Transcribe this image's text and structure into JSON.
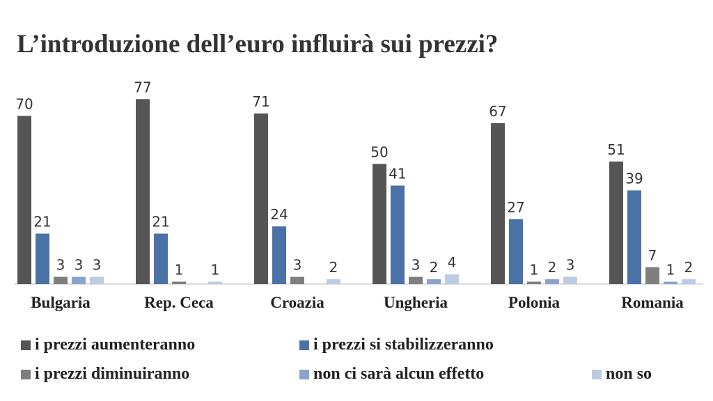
{
  "chart_data": {
    "type": "bar",
    "title": "L’introduzione dell’euro influirà sui prezzi?",
    "categories": [
      "Bulgaria",
      "Rep. Ceca",
      "Croazia",
      "Ungheria",
      "Polonia",
      "Romania"
    ],
    "series": [
      {
        "name": "i prezzi aumenteranno",
        "color": "#555555",
        "values": [
          70,
          77,
          71,
          50,
          67,
          51
        ]
      },
      {
        "name": "i prezzi si stabilizzeranno",
        "color": "#4a72a6",
        "values": [
          21,
          21,
          24,
          41,
          27,
          39
        ]
      },
      {
        "name": "i prezzi diminuiranno",
        "color": "#7f7f7f",
        "values": [
          3,
          1,
          3,
          3,
          1,
          7
        ]
      },
      {
        "name": "non ci sarà alcun effetto",
        "color": "#8aa3cd",
        "values": [
          3,
          null,
          null,
          2,
          2,
          1
        ]
      },
      {
        "name": "non so",
        "color": "#bdcbe5",
        "values": [
          3,
          1,
          2,
          4,
          3,
          2
        ]
      }
    ],
    "ylim": [
      0,
      80
    ],
    "grid": false,
    "legend_position": "bottom",
    "data_labels": true
  }
}
